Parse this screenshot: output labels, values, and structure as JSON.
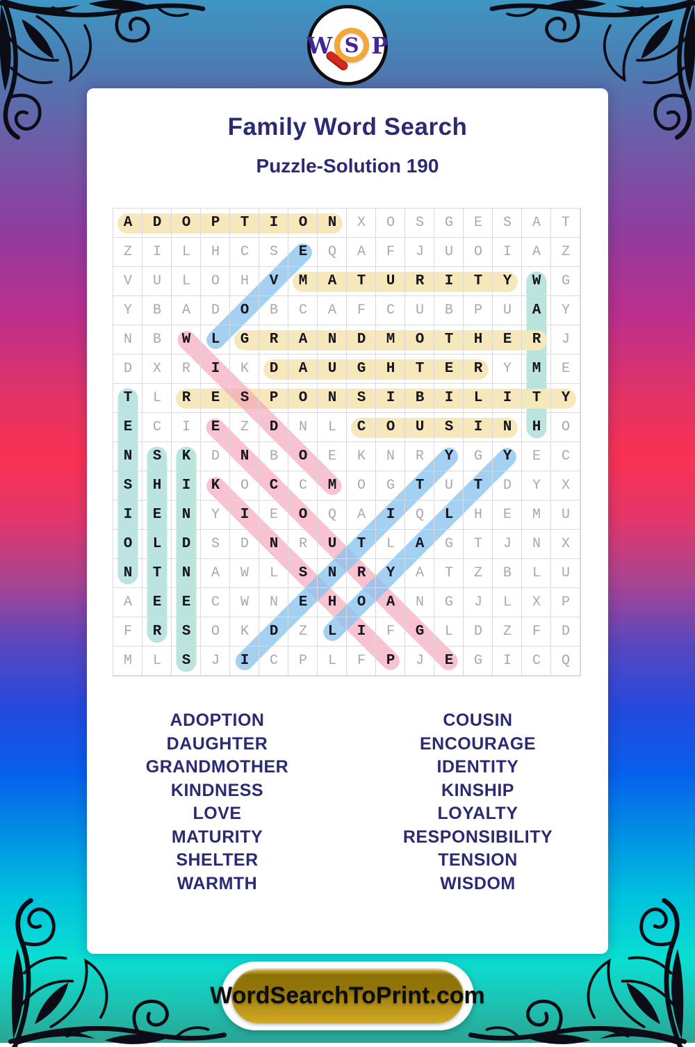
{
  "branding": {
    "logo_w": "W",
    "logo_s": "S",
    "logo_p": "P",
    "site_link": "WordSearchToPrint.com"
  },
  "header": {
    "title": "Family Word Search",
    "subtitle": "Puzzle-Solution 190"
  },
  "puzzle": {
    "grid_size": 16,
    "rows": [
      "ADOPTIONXOSGESAT",
      "ZILHCSEQAFJUOIAZ",
      "VULOHVMATURITYWG",
      "YBADOBCAFCUBPUAY",
      "NBWLGRANDMOTHERJ",
      "DXRIKDAUGHTERYME",
      "TLRESPONSIBILITY",
      "ECIEZDNLCOUSINHO",
      "NSKDNBOEKNRYGYEC",
      "SHIKOCCMOGTUTDYX",
      "IENYIEOQAIQLHEMU",
      "OLDSDNRUTLAGTJNX",
      "NTNAWLSNRYATZBLU",
      "AEECWNEHOANGJLXP",
      "FRSOKDZLIFGLDZFD",
      "MLSJICPLFPJEGICQ"
    ],
    "highlight_colors": {
      "yellow": "rgba(247,231,186,0.97)",
      "teal": "rgba(186,227,221,0.97)",
      "pink": "rgba(244,154,178,0.60)",
      "blue": "rgba(134,193,238,0.75)"
    },
    "highlights": [
      {
        "word": "WARMTH",
        "color": "teal",
        "from": [
          3,
          15
        ],
        "to": [
          8,
          15
        ]
      },
      {
        "word": "TENSION",
        "color": "teal",
        "from": [
          7,
          1
        ],
        "to": [
          13,
          1
        ]
      },
      {
        "word": "SHELTER",
        "color": "teal",
        "from": [
          9,
          2
        ],
        "to": [
          15,
          2
        ]
      },
      {
        "word": "KINDNESS",
        "color": "teal",
        "from": [
          9,
          3
        ],
        "to": [
          16,
          3
        ]
      },
      {
        "word": "ADOPTION",
        "color": "yellow",
        "from": [
          1,
          1
        ],
        "to": [
          1,
          8
        ]
      },
      {
        "word": "MATURITY",
        "color": "yellow",
        "from": [
          3,
          7
        ],
        "to": [
          3,
          14
        ]
      },
      {
        "word": "GRANDMOTHER",
        "color": "yellow",
        "from": [
          5,
          5
        ],
        "to": [
          5,
          15
        ]
      },
      {
        "word": "DAUGHTER",
        "color": "yellow",
        "from": [
          6,
          6
        ],
        "to": [
          6,
          13
        ]
      },
      {
        "word": "RESPONSIBILITY",
        "color": "yellow",
        "from": [
          7,
          3
        ],
        "to": [
          7,
          16
        ]
      },
      {
        "word": "COUSIN",
        "color": "yellow",
        "from": [
          8,
          9
        ],
        "to": [
          8,
          14
        ]
      },
      {
        "word": "WISDOM",
        "color": "pink",
        "from": [
          5,
          3
        ],
        "to": [
          10,
          8
        ]
      },
      {
        "word": "ENCOURAGE",
        "color": "pink",
        "from": [
          8,
          4
        ],
        "to": [
          16,
          12
        ]
      },
      {
        "word": "KINSHIP",
        "color": "pink",
        "from": [
          10,
          4
        ],
        "to": [
          16,
          10
        ]
      },
      {
        "word": "LOVE",
        "color": "blue",
        "from": [
          5,
          4
        ],
        "to": [
          2,
          7
        ]
      },
      {
        "word": "IDENTITY",
        "color": "blue",
        "from": [
          16,
          5
        ],
        "to": [
          9,
          12
        ]
      },
      {
        "word": "LOYALTY",
        "color": "blue",
        "from": [
          15,
          8
        ],
        "to": [
          9,
          14
        ]
      }
    ]
  },
  "word_list": {
    "left": [
      "ADOPTION",
      "DAUGHTER",
      "GRANDMOTHER",
      "KINDNESS",
      "LOVE",
      "MATURITY",
      "SHELTER",
      "WARMTH"
    ],
    "right": [
      "COUSIN",
      "ENCOURAGE",
      "IDENTITY",
      "KINSHIP",
      "LOYALTY",
      "RESPONSIBILITY",
      "TENSION",
      "WISDOM"
    ]
  }
}
